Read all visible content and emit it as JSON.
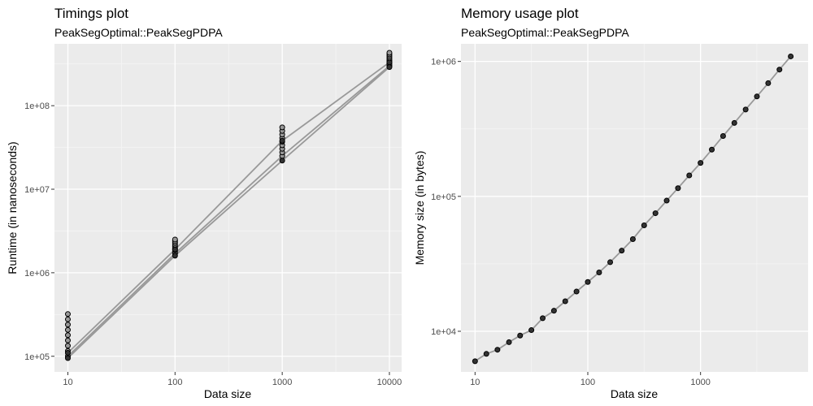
{
  "chart_data": [
    {
      "type": "line",
      "title": "Timings plot",
      "subtitle": "PeakSegOptimal::PeakSegPDPA",
      "xlabel": "Data size",
      "ylabel": "Runtime (in nanoseconds)",
      "xscale": "log10",
      "yscale": "log10",
      "xlim": [
        7.5,
        13000
      ],
      "ylim": [
        65000,
        550000000
      ],
      "xticks": [
        10,
        100,
        1000,
        10000
      ],
      "xtick_labels": [
        "10",
        "100",
        "1000",
        "10000"
      ],
      "yticks": [
        100000,
        1000000,
        10000000,
        100000000
      ],
      "ytick_labels": [
        "1e+05",
        "1e+06",
        "1e+07",
        "1e+08"
      ],
      "grid": true,
      "line_color": "#999999",
      "point_color": "#000000",
      "series": [
        {
          "x": [
            10,
            100,
            1000,
            10000
          ],
          "y": [
            100000,
            1700000,
            25000000,
            300000000
          ],
          "y_max": [
            320000,
            2500000,
            55000000,
            430000000
          ]
        },
        {
          "x": [
            10,
            100,
            1000,
            10000
          ],
          "y": [
            110000,
            1900000,
            38000000,
            330000000
          ]
        },
        {
          "x": [
            10,
            100,
            1000,
            10000
          ],
          "y": [
            95000,
            1600000,
            22000000,
            290000000
          ]
        }
      ]
    },
    {
      "type": "line",
      "title": "Memory usage plot",
      "subtitle": "PeakSegOptimal::PeakSegPDPA",
      "xlabel": "Data size",
      "ylabel": "Memory size (in bytes)",
      "xscale": "log10",
      "yscale": "log10",
      "xlim": [
        7.5,
        9000
      ],
      "ylim": [
        5000,
        1350000
      ],
      "xticks": [
        10,
        100,
        1000
      ],
      "xtick_labels": [
        "10",
        "100",
        "1000"
      ],
      "yticks": [
        10000,
        100000,
        1000000
      ],
      "ytick_labels": [
        "1e+04",
        "1e+05",
        "1e+06"
      ],
      "grid": true,
      "line_color": "#999999",
      "point_color": "#000000",
      "series": [
        {
          "x": [
            10,
            12.6,
            15.8,
            20,
            25.1,
            31.6,
            39.8,
            50.1,
            63.1,
            79.4,
            100,
            126,
            158,
            200,
            251,
            316,
            398,
            501,
            631,
            794,
            1000,
            1259,
            1585,
            1995,
            2512,
            3162,
            3981,
            5012,
            6310
          ],
          "y": [
            6000,
            6800,
            7300,
            8300,
            9300,
            10200,
            12500,
            14200,
            16700,
            19700,
            23200,
            27300,
            32500,
            39600,
            48200,
            61000,
            75000,
            93000,
            115000,
            143000,
            177000,
            222000,
            280000,
            350000,
            440000,
            550000,
            690000,
            870000,
            1090000
          ]
        }
      ]
    }
  ]
}
